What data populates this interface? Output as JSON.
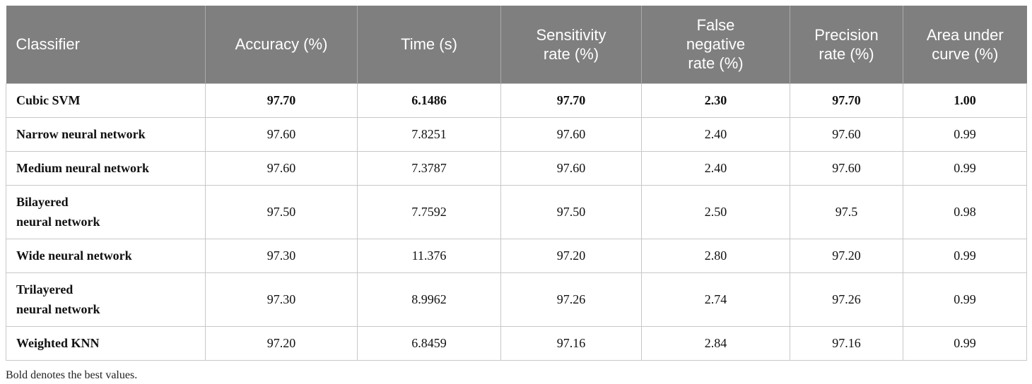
{
  "table": {
    "headers": [
      "Classifier",
      "Accuracy (%)",
      "Time (s)",
      "Sensitivity rate (%)",
      "False negative rate (%)",
      "Precision rate (%)",
      "Area under curve (%)"
    ],
    "rows": [
      {
        "classifier": "Cubic SVM",
        "accuracy": "97.70",
        "time": "6.1486",
        "sensitivity": "97.70",
        "fnr": "2.30",
        "precision": "97.70",
        "auc": "1.00",
        "best": true
      },
      {
        "classifier": "Narrow neural network",
        "accuracy": "97.60",
        "time": "7.8251",
        "sensitivity": "97.60",
        "fnr": "2.40",
        "precision": "97.60",
        "auc": "0.99",
        "best": false
      },
      {
        "classifier": "Medium neural network",
        "accuracy": "97.60",
        "time": "7.3787",
        "sensitivity": "97.60",
        "fnr": "2.40",
        "precision": "97.60",
        "auc": "0.99",
        "best": false
      },
      {
        "classifier": "Bilayered neural network",
        "accuracy": "97.50",
        "time": "7.7592",
        "sensitivity": "97.50",
        "fnr": "2.50",
        "precision": "97.5",
        "auc": "0.98",
        "best": false
      },
      {
        "classifier": "Wide neural network",
        "accuracy": "97.30",
        "time": "11.376",
        "sensitivity": "97.20",
        "fnr": "2.80",
        "precision": "97.20",
        "auc": "0.99",
        "best": false
      },
      {
        "classifier": "Trilayered neural network",
        "accuracy": "97.30",
        "time": "8.9962",
        "sensitivity": "97.26",
        "fnr": "2.74",
        "precision": "97.26",
        "auc": "0.99",
        "best": false
      },
      {
        "classifier": "Weighted KNN",
        "accuracy": "97.20",
        "time": "6.8459",
        "sensitivity": "97.16",
        "fnr": "2.84",
        "precision": "97.16",
        "auc": "0.99",
        "best": false
      }
    ]
  },
  "footnote": "Bold denotes the best values."
}
